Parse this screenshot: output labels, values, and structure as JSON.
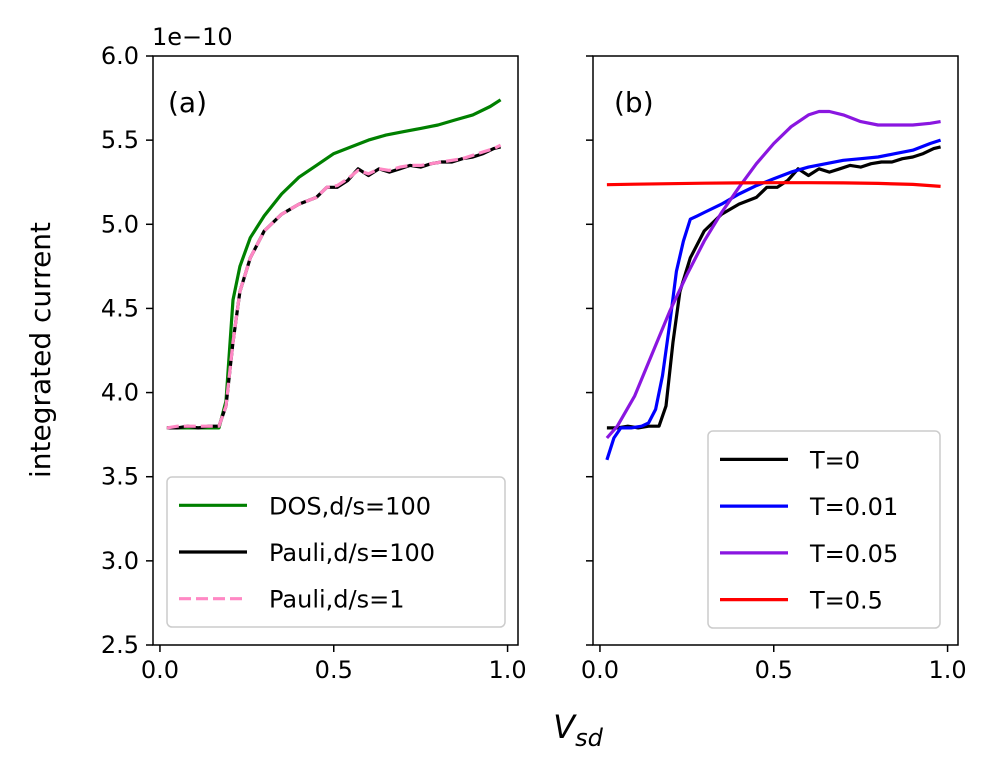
{
  "figure": {
    "ylabel": "integrated current",
    "xlabel_main": "V",
    "xlabel_sub": "sd",
    "y_scale_label": "1e−10"
  },
  "colors": {
    "dos": "#008000",
    "pauli100": "#000000",
    "pauli1": "#ff88c4",
    "t0": "#000000",
    "t001": "#0000ff",
    "t005": "#8a16e0",
    "t05": "#ff0000"
  },
  "chart_data": [
    {
      "type": "line",
      "panel_label": "(a)",
      "xlim": [
        -0.02,
        1.03
      ],
      "ylim": [
        2.5,
        6.0
      ],
      "xticks": [
        0.0,
        0.5,
        1.0
      ],
      "xtick_labels": [
        "0.0",
        "0.5",
        "1.0"
      ],
      "yticks": [
        2.5,
        3.0,
        3.5,
        4.0,
        4.5,
        5.0,
        5.5,
        6.0
      ],
      "ytick_labels": [
        "2.5",
        "3.0",
        "3.5",
        "4.0",
        "4.5",
        "5.0",
        "5.5",
        "6.0"
      ],
      "y_multiplier": "1e-10",
      "legend_position": "lower-left",
      "grid": false,
      "series": [
        {
          "name": "DOS,d/s=100",
          "style": "solid",
          "color_key": "dos",
          "x": [
            0.02,
            0.06,
            0.1,
            0.14,
            0.17,
            0.19,
            0.21,
            0.23,
            0.26,
            0.3,
            0.35,
            0.4,
            0.45,
            0.5,
            0.55,
            0.6,
            0.65,
            0.7,
            0.75,
            0.8,
            0.85,
            0.9,
            0.95,
            0.98
          ],
          "y": [
            3.79,
            3.79,
            3.79,
            3.79,
            3.79,
            3.95,
            4.55,
            4.75,
            4.92,
            5.05,
            5.18,
            5.28,
            5.35,
            5.42,
            5.46,
            5.5,
            5.53,
            5.55,
            5.57,
            5.59,
            5.62,
            5.65,
            5.7,
            5.74
          ]
        },
        {
          "name": "Pauli,d/s=100",
          "style": "solid",
          "color_key": "pauli100",
          "x": [
            0.02,
            0.05,
            0.08,
            0.11,
            0.14,
            0.17,
            0.19,
            0.21,
            0.23,
            0.26,
            0.3,
            0.35,
            0.4,
            0.45,
            0.48,
            0.51,
            0.54,
            0.57,
            0.6,
            0.63,
            0.66,
            0.69,
            0.72,
            0.75,
            0.78,
            0.81,
            0.84,
            0.87,
            0.9,
            0.93,
            0.96,
            0.98
          ],
          "y": [
            3.79,
            3.79,
            3.8,
            3.79,
            3.8,
            3.8,
            3.92,
            4.3,
            4.6,
            4.8,
            4.96,
            5.06,
            5.12,
            5.16,
            5.22,
            5.22,
            5.26,
            5.33,
            5.29,
            5.33,
            5.31,
            5.33,
            5.35,
            5.34,
            5.36,
            5.37,
            5.37,
            5.39,
            5.4,
            5.42,
            5.45,
            5.46
          ]
        },
        {
          "name": "Pauli,d/s=1",
          "style": "dashed",
          "color_key": "pauli1",
          "x": [
            0.02,
            0.05,
            0.08,
            0.11,
            0.14,
            0.17,
            0.19,
            0.21,
            0.23,
            0.26,
            0.3,
            0.35,
            0.4,
            0.45,
            0.48,
            0.51,
            0.54,
            0.57,
            0.6,
            0.63,
            0.66,
            0.69,
            0.72,
            0.75,
            0.78,
            0.81,
            0.84,
            0.87,
            0.9,
            0.93,
            0.96,
            0.98
          ],
          "y": [
            3.79,
            3.8,
            3.8,
            3.8,
            3.8,
            3.8,
            3.92,
            4.3,
            4.6,
            4.8,
            4.96,
            5.06,
            5.12,
            5.16,
            5.22,
            5.23,
            5.27,
            5.32,
            5.3,
            5.33,
            5.32,
            5.34,
            5.35,
            5.35,
            5.36,
            5.37,
            5.38,
            5.39,
            5.41,
            5.43,
            5.45,
            5.47
          ]
        }
      ]
    },
    {
      "type": "line",
      "panel_label": "(b)",
      "xlim": [
        -0.02,
        1.03
      ],
      "ylim": [
        2.5,
        6.0
      ],
      "xticks": [
        0.0,
        0.5,
        1.0
      ],
      "xtick_labels": [
        "0.0",
        "0.5",
        "1.0"
      ],
      "yticks": [
        2.5,
        3.0,
        3.5,
        4.0,
        4.5,
        5.0,
        5.5,
        6.0
      ],
      "y_tick_labels_visible": false,
      "legend_position": "lower-right",
      "grid": false,
      "series": [
        {
          "name": "T=0",
          "style": "solid",
          "color_key": "t0",
          "x": [
            0.02,
            0.05,
            0.08,
            0.11,
            0.14,
            0.17,
            0.19,
            0.21,
            0.23,
            0.26,
            0.3,
            0.35,
            0.4,
            0.45,
            0.48,
            0.51,
            0.54,
            0.57,
            0.6,
            0.63,
            0.66,
            0.69,
            0.72,
            0.75,
            0.78,
            0.81,
            0.84,
            0.87,
            0.9,
            0.93,
            0.96,
            0.98
          ],
          "y": [
            3.79,
            3.79,
            3.8,
            3.79,
            3.8,
            3.8,
            3.92,
            4.3,
            4.6,
            4.8,
            4.96,
            5.06,
            5.12,
            5.16,
            5.22,
            5.22,
            5.26,
            5.33,
            5.29,
            5.33,
            5.31,
            5.33,
            5.35,
            5.34,
            5.36,
            5.37,
            5.37,
            5.39,
            5.4,
            5.42,
            5.45,
            5.46
          ]
        },
        {
          "name": "T=0.01",
          "style": "solid",
          "color_key": "t001",
          "x": [
            0.02,
            0.04,
            0.06,
            0.09,
            0.12,
            0.14,
            0.16,
            0.18,
            0.2,
            0.22,
            0.24,
            0.26,
            0.28,
            0.3,
            0.35,
            0.4,
            0.45,
            0.5,
            0.55,
            0.6,
            0.65,
            0.7,
            0.75,
            0.8,
            0.85,
            0.9,
            0.95,
            0.98
          ],
          "y": [
            3.6,
            3.73,
            3.79,
            3.79,
            3.8,
            3.82,
            3.9,
            4.1,
            4.4,
            4.72,
            4.9,
            5.03,
            5.05,
            5.07,
            5.12,
            5.18,
            5.23,
            5.27,
            5.31,
            5.34,
            5.36,
            5.38,
            5.39,
            5.4,
            5.42,
            5.44,
            5.48,
            5.5
          ]
        },
        {
          "name": "T=0.05",
          "style": "solid",
          "color_key": "t005",
          "x": [
            0.02,
            0.05,
            0.1,
            0.15,
            0.2,
            0.25,
            0.3,
            0.35,
            0.4,
            0.45,
            0.5,
            0.55,
            0.6,
            0.63,
            0.66,
            0.7,
            0.75,
            0.8,
            0.85,
            0.9,
            0.95,
            0.98
          ],
          "y": [
            3.73,
            3.8,
            3.98,
            4.23,
            4.48,
            4.7,
            4.9,
            5.07,
            5.22,
            5.36,
            5.48,
            5.58,
            5.65,
            5.67,
            5.67,
            5.65,
            5.61,
            5.59,
            5.59,
            5.59,
            5.6,
            5.61
          ]
        },
        {
          "name": "T=0.5",
          "style": "solid",
          "color_key": "t05",
          "x": [
            0.02,
            0.1,
            0.2,
            0.3,
            0.4,
            0.5,
            0.6,
            0.7,
            0.8,
            0.9,
            0.98
          ],
          "y": [
            5.235,
            5.238,
            5.241,
            5.244,
            5.246,
            5.247,
            5.247,
            5.246,
            5.243,
            5.237,
            5.225
          ]
        }
      ]
    }
  ]
}
